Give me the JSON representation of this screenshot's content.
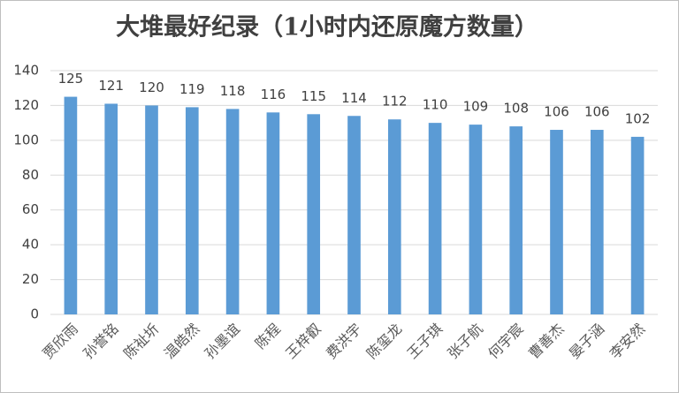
{
  "chart_data": {
    "type": "bar",
    "title": "大堆最好纪录（1小时内还原魔方数量）",
    "categories": [
      "贾欣雨",
      "孙誉铭",
      "陈祉圻",
      "温皓然",
      "孙墨谊",
      "陈程",
      "王梓叡",
      "费洪宇",
      "陈玺龙",
      "王子琪",
      "张子航",
      "何宇宸",
      "曹善杰",
      "晏子涵",
      "李安然"
    ],
    "values": [
      125,
      121,
      120,
      119,
      118,
      116,
      115,
      114,
      112,
      110,
      109,
      108,
      106,
      106,
      102
    ],
    "color": "#5b9bd5",
    "ylim": [
      0,
      140
    ],
    "yticks": [
      0,
      20,
      40,
      60,
      80,
      100,
      120,
      140
    ],
    "grid": true
  }
}
